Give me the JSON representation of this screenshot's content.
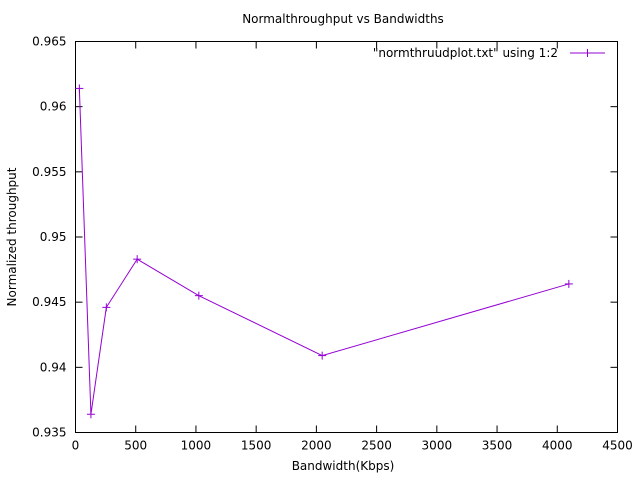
{
  "chart_data": {
    "type": "line",
    "title": "Normalthroughput vs Bandwidths",
    "xlabel": "Bandwidth(Kbps)",
    "ylabel": "Normalized throughput",
    "xlim": [
      0,
      4500
    ],
    "ylim": [
      0.935,
      0.965
    ],
    "xticks": [
      0,
      500,
      1000,
      1500,
      2000,
      2500,
      3000,
      3500,
      4000,
      4500
    ],
    "yticks": [
      0.935,
      0.94,
      0.945,
      0.95,
      0.955,
      0.96,
      0.965
    ],
    "ytick_labels": [
      "0.935",
      "0.94",
      "0.945",
      "0.95",
      "0.955",
      "0.96",
      "0.965"
    ],
    "grid": false,
    "legend_position": "top-right",
    "series": [
      {
        "name": "\"normthruudplot.txt\" using 1:2",
        "color": "#9400d3",
        "marker": "plus",
        "x": [
          32,
          128,
          256,
          512,
          1024,
          2048,
          4096
        ],
        "y": [
          0.9614,
          0.9364,
          0.9446,
          0.9483,
          0.9455,
          0.9409,
          0.9464
        ]
      }
    ]
  }
}
